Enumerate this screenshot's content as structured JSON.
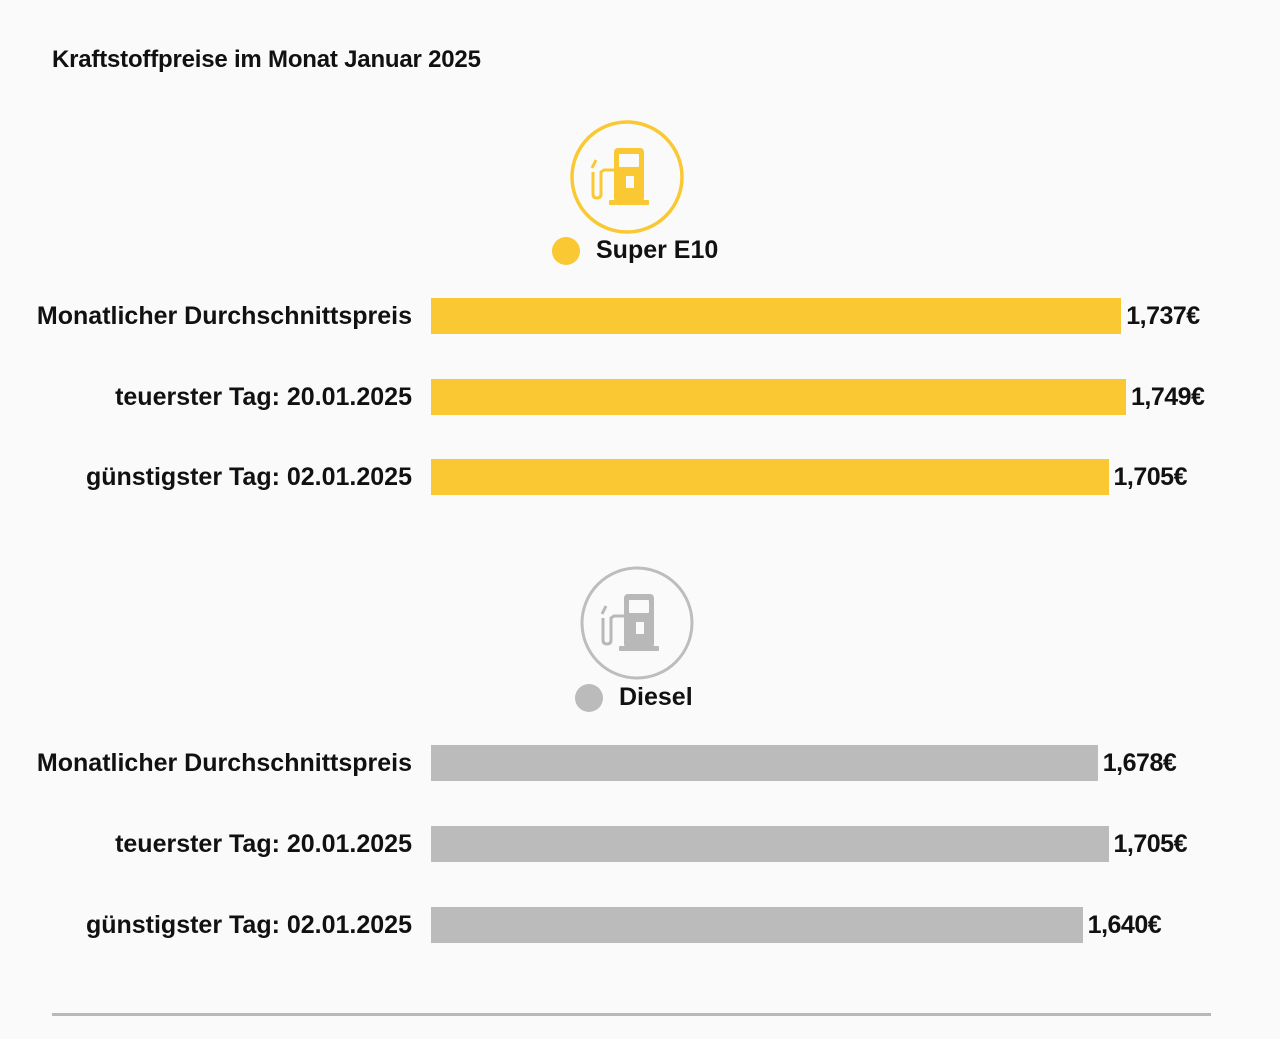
{
  "title": "Kraftstoffpreise im Monat Januar 2025",
  "colors": {
    "super": "#f9c832",
    "diesel": "#bbbbbb",
    "diesel_icon": "#b8b8b8"
  },
  "icons": {
    "pump": "fuel-pump-icon"
  },
  "chart_data": {
    "type": "bar",
    "orientation": "horizontal",
    "title": "Kraftstoffpreise im Monat Januar 2025",
    "unit": "€",
    "categories": [
      "Monatlicher Durchschnittspreis",
      "teuerster Tag: 20.01.2025",
      "günstigster Tag: 02.01.2025"
    ],
    "series": [
      {
        "name": "Super E10",
        "color": "#f9c832",
        "values": [
          1.737,
          1.749,
          1.705
        ],
        "labels": [
          "1,737€",
          "1,749€",
          "1,705€"
        ]
      },
      {
        "name": "Diesel",
        "color": "#bbbbbb",
        "values": [
          1.678,
          1.705,
          1.64
        ],
        "labels": [
          "1,678€",
          "1,705€",
          "1,640€"
        ]
      }
    ]
  }
}
